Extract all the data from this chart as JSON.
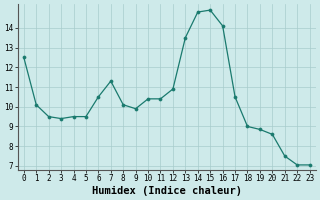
{
  "x": [
    0,
    1,
    2,
    3,
    4,
    5,
    6,
    7,
    8,
    9,
    10,
    11,
    12,
    13,
    14,
    15,
    16,
    17,
    18,
    19,
    20,
    21,
    22,
    23
  ],
  "y": [
    12.5,
    10.1,
    9.5,
    9.4,
    9.5,
    9.5,
    10.5,
    11.3,
    10.1,
    9.9,
    10.4,
    10.4,
    10.9,
    13.5,
    14.8,
    14.9,
    14.1,
    10.5,
    9.0,
    8.85,
    8.6,
    7.5,
    7.05,
    7.05
  ],
  "line_color": "#1a7a6e",
  "marker": "o",
  "markersize": 2.2,
  "linewidth": 0.9,
  "background_color": "#ceeaea",
  "grid_color": "#a8cccc",
  "xlabel": "Humidex (Indice chaleur)",
  "xlim": [
    -0.5,
    23.5
  ],
  "ylim": [
    6.8,
    15.2
  ],
  "yticks": [
    7,
    8,
    9,
    10,
    11,
    12,
    13,
    14
  ],
  "xticks": [
    0,
    1,
    2,
    3,
    4,
    5,
    6,
    7,
    8,
    9,
    10,
    11,
    12,
    13,
    14,
    15,
    16,
    17,
    18,
    19,
    20,
    21,
    22,
    23
  ],
  "tick_labelsize": 5.5,
  "xlabel_fontsize": 7.5
}
